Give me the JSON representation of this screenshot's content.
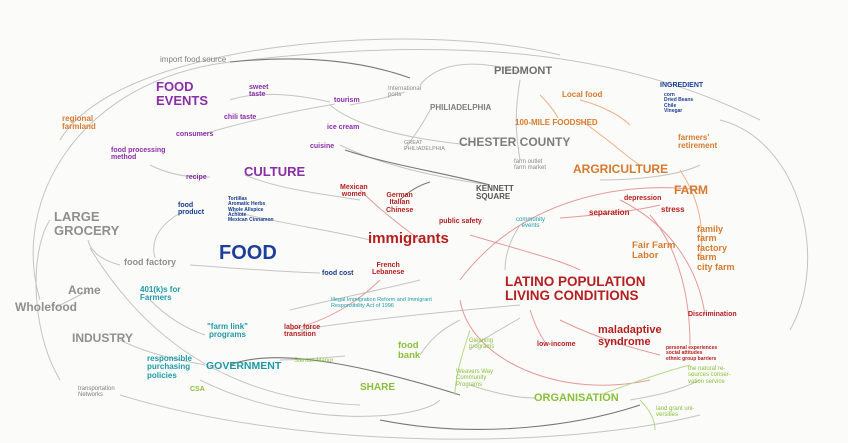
{
  "colors": {
    "purple": "#8a2fa6",
    "orange": "#d77a2e",
    "gray": "#7d7d7d",
    "darkgray": "#555555",
    "blue": "#1e3f99",
    "navy": "#173b8f",
    "teal": "#1e9aa6",
    "red": "#b51e1e",
    "green": "#8abf3c",
    "pink": "#e07070",
    "link": "#bdbdbd"
  },
  "nodes": {
    "import_food_source": "import food source",
    "food_events": "FOOD\nEVENTS",
    "sweet_taste": "sweet\ntaste",
    "tourism": "tourism",
    "international_ports": "International\nports",
    "piedmont": "PIEDMONT",
    "ingredient": "INGREDIENT",
    "ingredient_list": "corn\nDried Beans\nChile\nVinegar",
    "local_food": "Local food",
    "philadelphia": "PHILIADELPHIA",
    "regional_farmland": "regional\nfarmland",
    "consumers": "consumers",
    "chili_taste": "chili taste",
    "ice_cream": "ice cream",
    "foodshed": "100-MILE FOODSHED",
    "farmers_retirement": "farmers'\nretirement",
    "great_philadelphia": "GREAT\nPHILIADELPHIA",
    "chester_county": "CHESTER COUNTY",
    "cuisine": "cuisine",
    "food_processing_method": "food processing\nmethod",
    "farm_outlet": "farm outlet\nfarm market",
    "culture": "CULTURE",
    "recipe": "recipe",
    "agriculture": "ARGRICULTURE",
    "mexican_women": "Mexican\nwomen",
    "kennett_square": "KENNETT\nSQUARE",
    "german_italian_chinese": "German\nItalian\nChinese",
    "farm": "FARM",
    "depression": "depression",
    "large_grocery": "LARGE\nGROCERY",
    "food_product": "food\nproduct",
    "tortillas": "Tortillas\nAromatic Herbs\nWhole Allspice\nAchiote\nMexican Cinnamon",
    "stress": "stress",
    "separation": "separation",
    "public_safety": "public safety",
    "community_events": "community\nevents",
    "family_farm": "family\nfarm\nfactory\nfarm\ncity farm",
    "immigrants": "immigrants",
    "fair_farm_labor": "Fair Farm\nLabor",
    "food": "FOOD",
    "food_factory": "food factory",
    "french_lebanese": "French\nLebanese",
    "food_cost": "food cost",
    "latino": "LATINO POPULATION\nLIVING CONDITIONS",
    "acme": "Acme",
    "wholefood": "Wholefood",
    "k401": "401(k)s for\nFarmers",
    "illegal_immigration": "Illegal Immigration Reform and Immigrant\nResponsibility Act of 1996",
    "discrimination": "Discrimination",
    "industry": "INDUSTRY",
    "farm_link": "\"farm link\"\nprograms",
    "labor_force": "labor force\ntransition",
    "maladaptive": "maladaptive\nsyndrome",
    "gleaning": "Gleaning\nprograms",
    "low_income": "low-income",
    "food_bank": "food\nbank",
    "personal_experiences": "personal experiences\nsocial attitudes\nethnic group barriers",
    "responsible_purchasing": "responsible\npurchasing\npolicies",
    "government": "GOVERNMENT",
    "stenton_manor": "Stenton Manor",
    "natural_resources": "the natural re-\nsources conser-\nvation service",
    "weavers_way": "Weavers Way\nCommunity\nPrograms",
    "csa": "CSA",
    "share": "SHARE",
    "organisation": "ORGANISATION",
    "transportation_networks": "transportation\nNetworks",
    "land_grant": "land grant uni-\nversities"
  }
}
